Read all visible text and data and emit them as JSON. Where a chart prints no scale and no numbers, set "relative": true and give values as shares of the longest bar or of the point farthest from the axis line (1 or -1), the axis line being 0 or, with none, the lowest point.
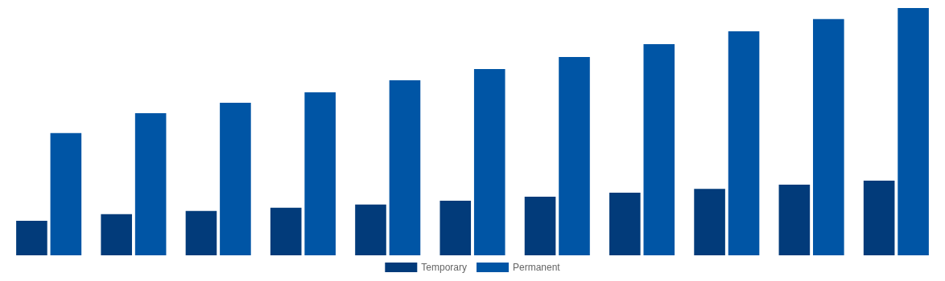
{
  "chart_data": {
    "type": "bar",
    "relative": true,
    "categories": [
      null,
      null,
      null,
      null,
      null,
      null,
      null,
      null,
      null,
      null,
      null
    ],
    "series": [
      {
        "name": "Temporary",
        "color": "#023b7a",
        "values": [
          0.14,
          0.166,
          0.179,
          0.192,
          0.205,
          0.221,
          0.237,
          0.253,
          0.269,
          0.286,
          0.302
        ]
      },
      {
        "name": "Permanent",
        "color": "#0055a5",
        "values": [
          0.494,
          0.575,
          0.617,
          0.659,
          0.708,
          0.753,
          0.802,
          0.854,
          0.906,
          0.955,
          1
        ]
      }
    ],
    "legend": "bottom"
  }
}
